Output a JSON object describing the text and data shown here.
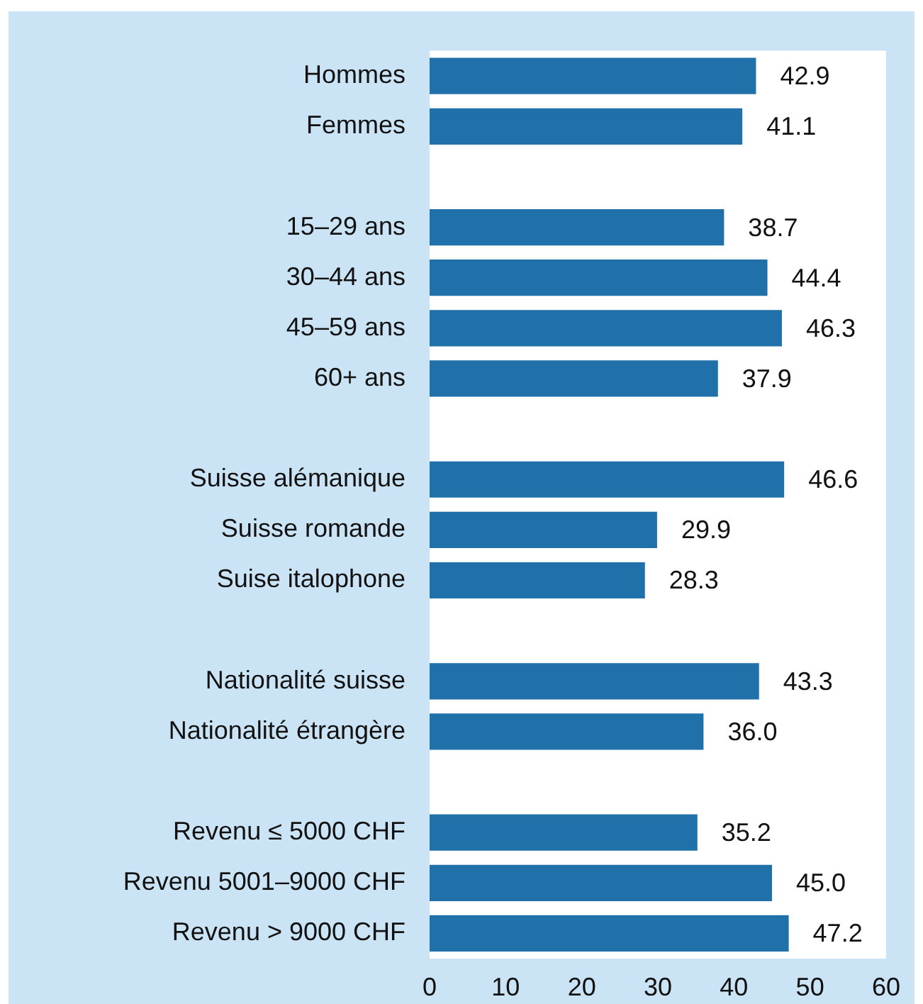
{
  "chart_data": {
    "type": "bar",
    "orientation": "horizontal",
    "categories": [
      "Hommes",
      "Femmes",
      null,
      "15–29 ans",
      "30–44 ans",
      "45–59 ans",
      "60+ ans",
      null,
      "Suisse alémanique",
      "Suisse romande",
      "Suise italophone",
      null,
      "Nationalité suisse",
      "Nationalité étrangère",
      null,
      "Revenu ≤ 5000 CHF",
      "Revenu 5001–9000 CHF",
      "Revenu > 9000 CHF"
    ],
    "values": [
      42.9,
      41.1,
      null,
      38.7,
      44.4,
      46.3,
      37.9,
      null,
      46.6,
      29.9,
      28.3,
      null,
      43.3,
      36.0,
      null,
      35.2,
      45.0,
      47.2
    ],
    "value_labels": [
      "42.9",
      "41.1",
      null,
      "38.7",
      "44.4",
      "46.3",
      "37.9",
      null,
      "46.6",
      "29.9",
      "28.3",
      null,
      "43.3",
      "36.0",
      null,
      "35.2",
      "45.0",
      "47.2"
    ],
    "color": "#2071aa",
    "xlim": [
      0,
      60
    ],
    "xticks": [
      0,
      10,
      20,
      30,
      40,
      50,
      60
    ],
    "grid": false,
    "legend": false
  }
}
